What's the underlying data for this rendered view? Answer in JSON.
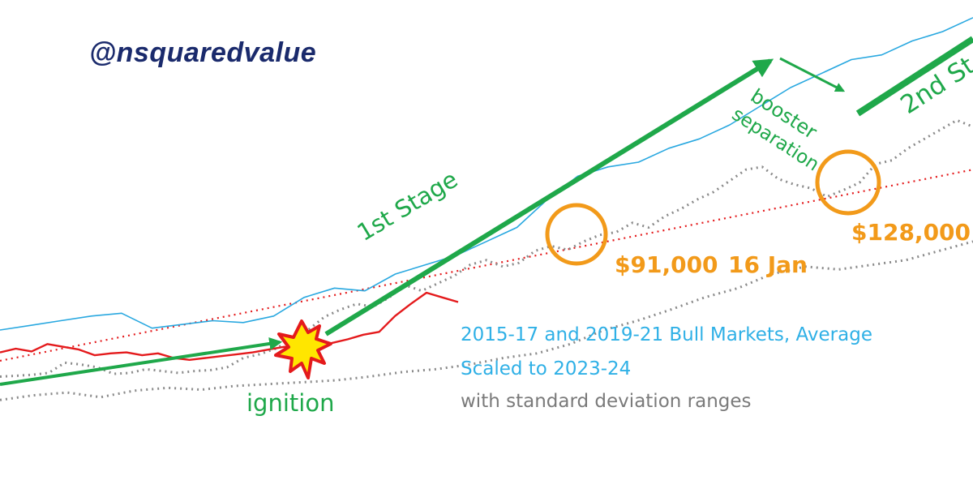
{
  "handle": "@nsquaredvalue",
  "labels": {
    "first_stage": "1st Stage",
    "second_stage": "2nd St",
    "booster": "booster",
    "separation": "separation",
    "ignition": "ignition",
    "price_1": "$91,000",
    "date_1": "16 Jan",
    "price_2": "$128,000"
  },
  "notes": {
    "line1": "2015-17 and 2019-21 Bull Markets, Average",
    "line2": "Scaled to 2023-24",
    "line3": "with standard deviation ranges"
  },
  "colors": {
    "actual": "#e41a1c",
    "average": "#29a8e0",
    "band": "#8a8a8a",
    "trend": "#e41a1c",
    "arrow": "#1fa84a",
    "target": "#f29a1a",
    "handle": "#1a2a6c"
  },
  "chart_data": {
    "type": "line",
    "title": "",
    "xlabel": "",
    "ylabel": "",
    "grid": false,
    "legend": "none",
    "series": [
      {
        "values": [
          0.7,
          0.71,
          0.72,
          0.74,
          0.85,
          0.83,
          0.8,
          0.73,
          0.74,
          0.78,
          0.76,
          0.74,
          0.76,
          0.77,
          0.8,
          0.9,
          0.94,
          1.0,
          1.1,
          1.2,
          1.34,
          1.42,
          1.48,
          1.45,
          1.55,
          1.68,
          1.62,
          1.7,
          1.78,
          1.9,
          1.95,
          1.88,
          1.92,
          2.05,
          2.1,
          2.06,
          2.15,
          2.22,
          2.25,
          2.35,
          2.3,
          2.42,
          2.5,
          2.6,
          2.68,
          2.8,
          2.92,
          2.95,
          2.82,
          2.76,
          2.72,
          2.63,
          2.7,
          2.78,
          2.98,
          3.02,
          3.15,
          3.25,
          3.35,
          3.45,
          3.38
        ]
      },
      {
        "values": [
          0.96,
          1.0,
          0.97,
          1.05,
          1.02,
          0.99,
          0.93,
          0.95,
          0.96,
          0.93,
          0.95,
          0.9,
          0.88,
          0.9,
          0.92,
          0.94,
          0.96,
          0.99,
          1.02,
          1.0,
          1.03,
          1.06,
          1.1,
          1.15,
          1.18,
          1.35,
          1.48,
          1.6,
          1.55,
          1.5
        ]
      },
      {
        "values": [
          1.2,
          1.25,
          1.3,
          1.35,
          1.38,
          1.22,
          1.26,
          1.3,
          1.28,
          1.35,
          1.55,
          1.65,
          1.62,
          1.8,
          1.9,
          2.0,
          2.15,
          2.3,
          2.6,
          2.85,
          2.95,
          3.0,
          3.15,
          3.25,
          3.4,
          3.6,
          3.8,
          3.95,
          4.1,
          4.15,
          4.3,
          4.4,
          4.55
        ]
      },
      {
        "values": [
          0.45,
          0.5,
          0.53,
          0.48,
          0.55,
          0.58,
          0.56,
          0.6,
          0.62,
          0.64,
          0.66,
          0.7,
          0.75,
          0.78,
          0.83,
          0.9,
          0.95,
          1.05,
          1.2,
          1.3,
          1.42,
          1.55,
          1.65,
          1.8,
          1.88,
          1.85,
          1.9,
          1.95,
          2.05,
          2.15
        ]
      }
    ],
    "trend": {
      "type": "dotted",
      "values": [
        0.87,
        2.92
      ]
    }
  }
}
